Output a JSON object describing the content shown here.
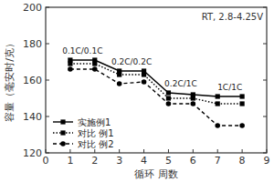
{
  "chart_data": {
    "type": "line",
    "subtitle": "RT, 2.8-4.25V",
    "x_label": "循环 周数",
    "y_label": "容量（毫安时/克）",
    "annotations": [
      "0.1C/0.1C",
      "0.2C/0.2C",
      "0.2C/1C",
      "1C/1C"
    ],
    "x": [
      1,
      2,
      3,
      4,
      5,
      6,
      7,
      8
    ],
    "series": [
      {
        "name": "实施例1",
        "color": "#000000",
        "line_style": "solid",
        "marker": "square",
        "values": [
          171,
          171,
          165,
          165,
          153,
          152,
          151,
          151
        ]
      },
      {
        "name": "对比 例1",
        "color": "#000000",
        "line_style": "dotted",
        "marker": "square",
        "values": [
          169,
          169,
          163,
          163,
          150,
          150,
          147,
          147
        ]
      },
      {
        "name": "对比 例2",
        "color": "#000000",
        "line_style": "dashed",
        "marker": "circle",
        "values": [
          166,
          166,
          158,
          159,
          147,
          147,
          135,
          135
        ]
      }
    ],
    "xlim": [
      0,
      9
    ],
    "xticks": [
      0,
      1,
      2,
      3,
      4,
      5,
      6,
      7,
      8,
      9
    ],
    "ylim": [
      120,
      200
    ],
    "yticks": [
      120,
      140,
      160,
      180,
      200
    ],
    "grid": false,
    "legend": "lower left"
  }
}
